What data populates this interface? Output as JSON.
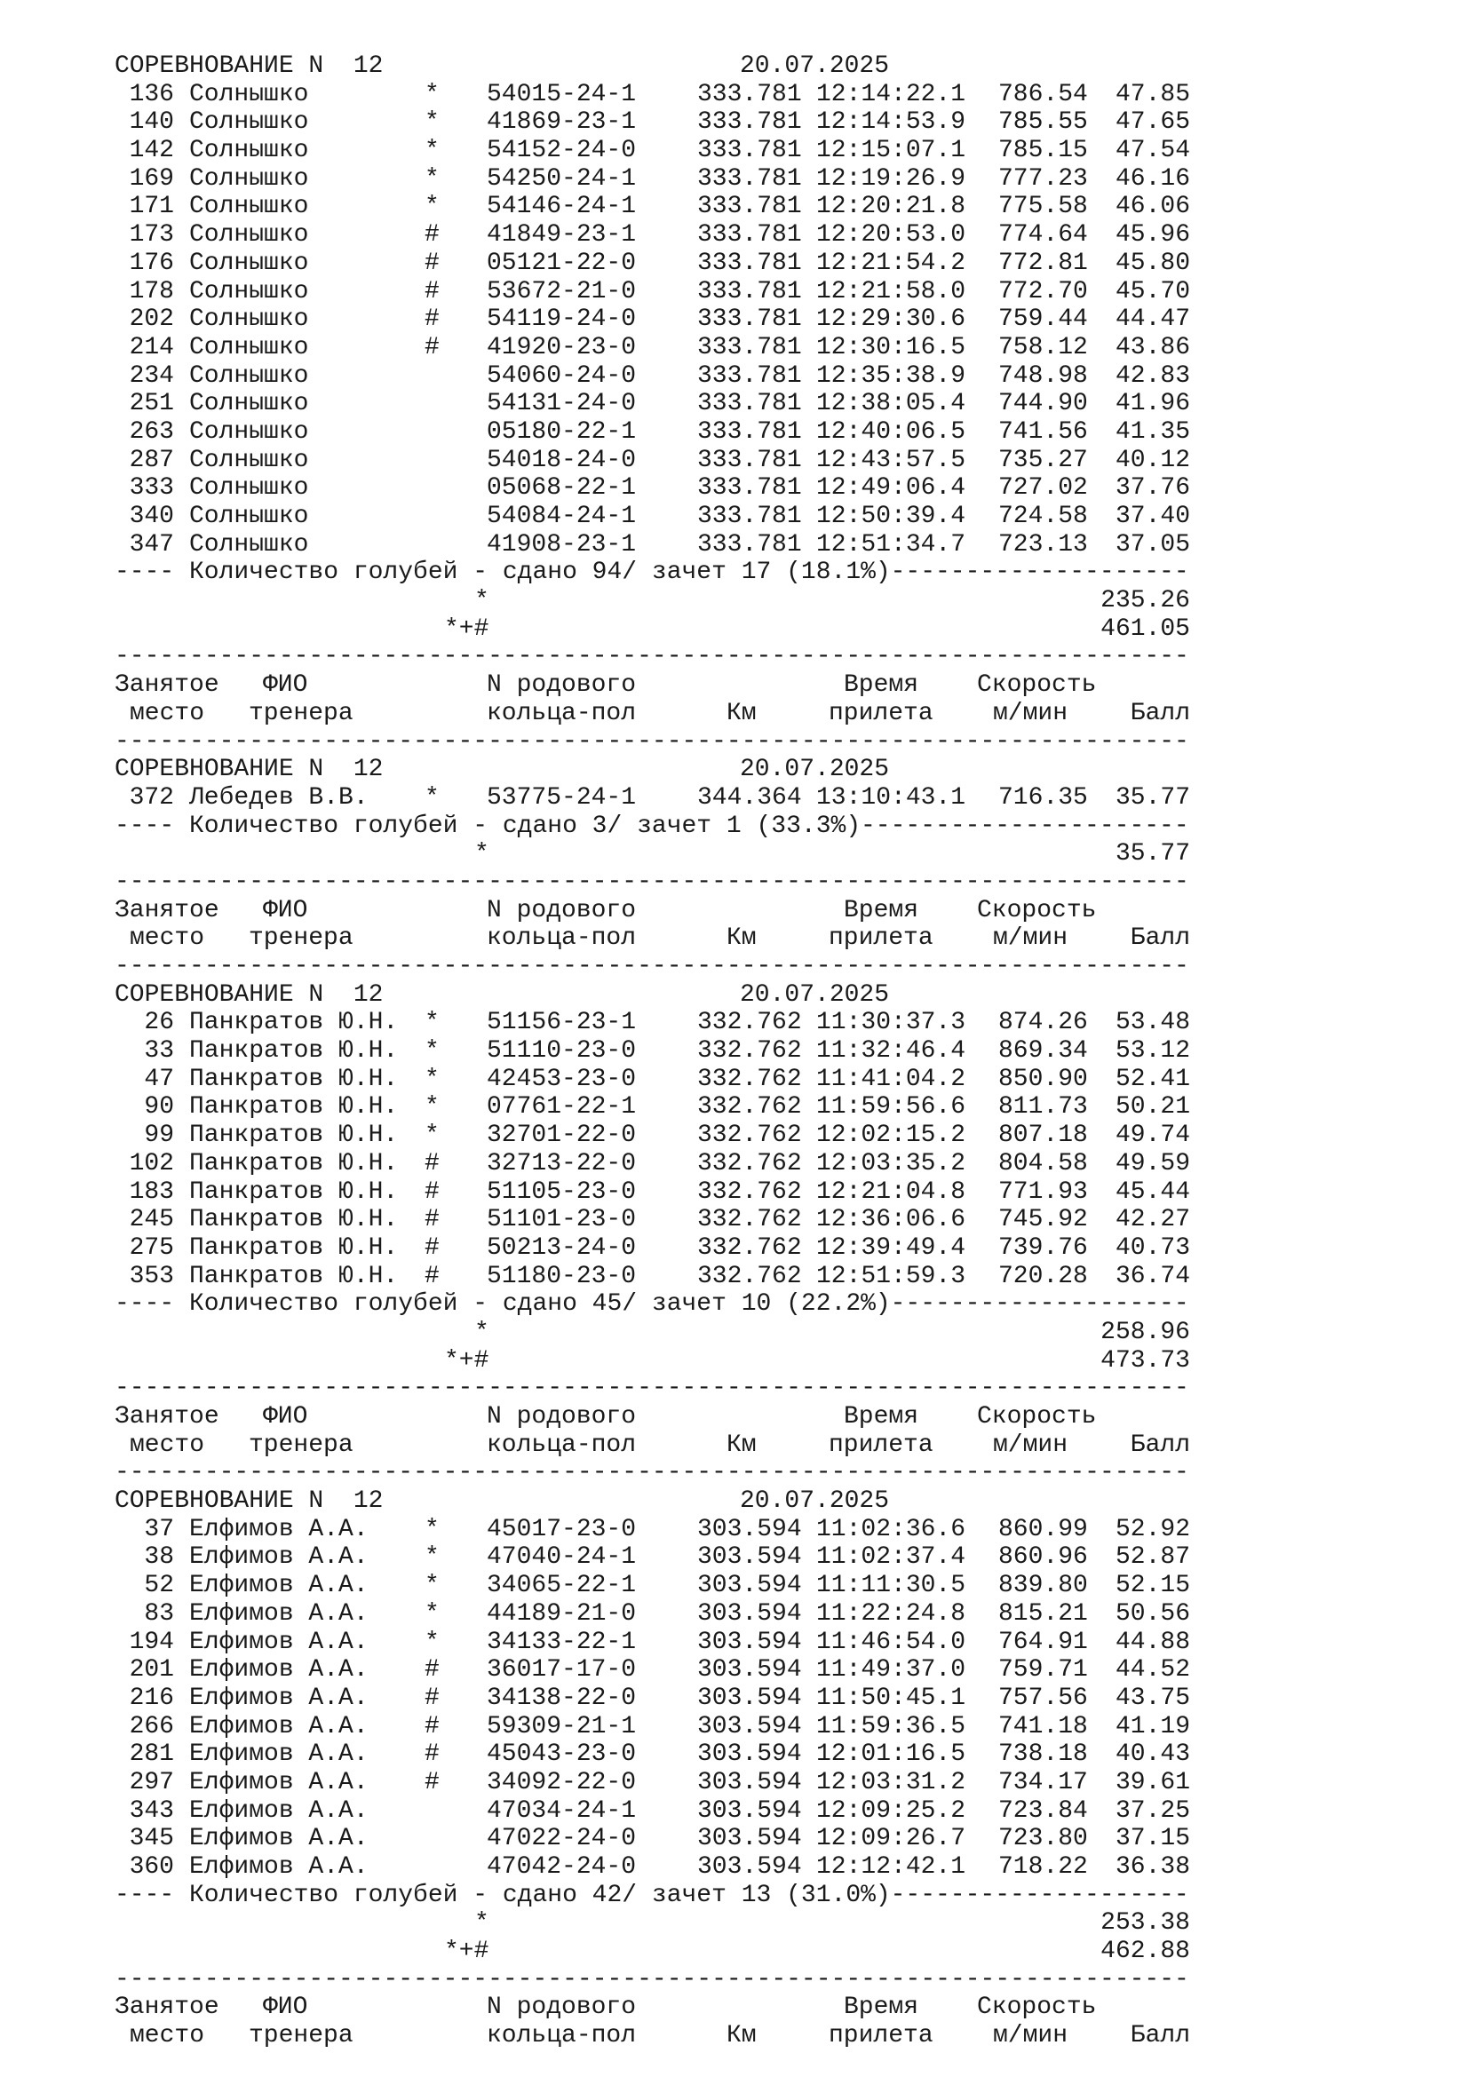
{
  "column_headers": {
    "place_1": "Занятое",
    "place_2": "место",
    "name_1": "ФИО",
    "name_2": "тренера",
    "ring_1": "N родового",
    "ring_2": "кольца-пол",
    "km_2": "Км",
    "time_1": "Время",
    "time_2": "прилета",
    "speed_1": "Скорость",
    "speed_2": "м/мин",
    "points_2": "Балл"
  },
  "sections": [
    {
      "title": "СОРЕВНОВАНИЕ N  12",
      "date": "20.07.2025",
      "rows": [
        {
          "place": "136",
          "name": "Солнышко",
          "mark": "*",
          "ring": "54015-24-1",
          "km": "333.781",
          "time": "12:14:22.1",
          "speed": "786.54",
          "points": "47.85"
        },
        {
          "place": "140",
          "name": "Солнышко",
          "mark": "*",
          "ring": "41869-23-1",
          "km": "333.781",
          "time": "12:14:53.9",
          "speed": "785.55",
          "points": "47.65"
        },
        {
          "place": "142",
          "name": "Солнышко",
          "mark": "*",
          "ring": "54152-24-0",
          "km": "333.781",
          "time": "12:15:07.1",
          "speed": "785.15",
          "points": "47.54"
        },
        {
          "place": "169",
          "name": "Солнышко",
          "mark": "*",
          "ring": "54250-24-1",
          "km": "333.781",
          "time": "12:19:26.9",
          "speed": "777.23",
          "points": "46.16"
        },
        {
          "place": "171",
          "name": "Солнышко",
          "mark": "*",
          "ring": "54146-24-1",
          "km": "333.781",
          "time": "12:20:21.8",
          "speed": "775.58",
          "points": "46.06"
        },
        {
          "place": "173",
          "name": "Солнышко",
          "mark": "#",
          "ring": "41849-23-1",
          "km": "333.781",
          "time": "12:20:53.0",
          "speed": "774.64",
          "points": "45.96"
        },
        {
          "place": "176",
          "name": "Солнышко",
          "mark": "#",
          "ring": "05121-22-0",
          "km": "333.781",
          "time": "12:21:54.2",
          "speed": "772.81",
          "points": "45.80"
        },
        {
          "place": "178",
          "name": "Солнышко",
          "mark": "#",
          "ring": "53672-21-0",
          "km": "333.781",
          "time": "12:21:58.0",
          "speed": "772.70",
          "points": "45.70"
        },
        {
          "place": "202",
          "name": "Солнышко",
          "mark": "#",
          "ring": "54119-24-0",
          "km": "333.781",
          "time": "12:29:30.6",
          "speed": "759.44",
          "points": "44.47"
        },
        {
          "place": "214",
          "name": "Солнышко",
          "mark": "#",
          "ring": "41920-23-0",
          "km": "333.781",
          "time": "12:30:16.5",
          "speed": "758.12",
          "points": "43.86"
        },
        {
          "place": "234",
          "name": "Солнышко",
          "mark": "",
          "ring": "54060-24-0",
          "km": "333.781",
          "time": "12:35:38.9",
          "speed": "748.98",
          "points": "42.83"
        },
        {
          "place": "251",
          "name": "Солнышко",
          "mark": "",
          "ring": "54131-24-0",
          "km": "333.781",
          "time": "12:38:05.4",
          "speed": "744.90",
          "points": "41.96"
        },
        {
          "place": "263",
          "name": "Солнышко",
          "mark": "",
          "ring": "05180-22-1",
          "km": "333.781",
          "time": "12:40:06.5",
          "speed": "741.56",
          "points": "41.35"
        },
        {
          "place": "287",
          "name": "Солнышко",
          "mark": "",
          "ring": "54018-24-0",
          "km": "333.781",
          "time": "12:43:57.5",
          "speed": "735.27",
          "points": "40.12"
        },
        {
          "place": "333",
          "name": "Солнышко",
          "mark": "",
          "ring": "05068-22-1",
          "km": "333.781",
          "time": "12:49:06.4",
          "speed": "727.02",
          "points": "37.76"
        },
        {
          "place": "340",
          "name": "Солнышко",
          "mark": "",
          "ring": "54084-24-1",
          "km": "333.781",
          "time": "12:50:39.4",
          "speed": "724.58",
          "points": "37.40"
        },
        {
          "place": "347",
          "name": "Солнышко",
          "mark": "",
          "ring": "41908-23-1",
          "km": "333.781",
          "time": "12:51:34.7",
          "speed": "723.13",
          "points": "37.05"
        }
      ],
      "count_text": "Количество голубей - сдано 94/ зачет 17 (18.1%)",
      "sums": [
        {
          "label": "*",
          "value": "235.26"
        },
        {
          "label": "*+#",
          "value": "461.05"
        }
      ]
    },
    {
      "title": "СОРЕВНОВАНИЕ N  12",
      "date": "20.07.2025",
      "rows": [
        {
          "place": "372",
          "name": "Лебедев В.В.",
          "mark": "*",
          "ring": "53775-24-1",
          "km": "344.364",
          "time": "13:10:43.1",
          "speed": "716.35",
          "points": "35.77"
        }
      ],
      "count_text": "Количество голубей - сдано 3/ зачет 1 (33.3%)",
      "sums": [
        {
          "label": "*",
          "value": "35.77"
        }
      ]
    },
    {
      "title": "СОРЕВНОВАНИЕ N  12",
      "date": "20.07.2025",
      "rows": [
        {
          "place": "26",
          "name": "Панкратов Ю.Н.",
          "mark": "*",
          "ring": "51156-23-1",
          "km": "332.762",
          "time": "11:30:37.3",
          "speed": "874.26",
          "points": "53.48"
        },
        {
          "place": "33",
          "name": "Панкратов Ю.Н.",
          "mark": "*",
          "ring": "51110-23-0",
          "km": "332.762",
          "time": "11:32:46.4",
          "speed": "869.34",
          "points": "53.12"
        },
        {
          "place": "47",
          "name": "Панкратов Ю.Н.",
          "mark": "*",
          "ring": "42453-23-0",
          "km": "332.762",
          "time": "11:41:04.2",
          "speed": "850.90",
          "points": "52.41"
        },
        {
          "place": "90",
          "name": "Панкратов Ю.Н.",
          "mark": "*",
          "ring": "07761-22-1",
          "km": "332.762",
          "time": "11:59:56.6",
          "speed": "811.73",
          "points": "50.21"
        },
        {
          "place": "99",
          "name": "Панкратов Ю.Н.",
          "mark": "*",
          "ring": "32701-22-0",
          "km": "332.762",
          "time": "12:02:15.2",
          "speed": "807.18",
          "points": "49.74"
        },
        {
          "place": "102",
          "name": "Панкратов Ю.Н.",
          "mark": "#",
          "ring": "32713-22-0",
          "km": "332.762",
          "time": "12:03:35.2",
          "speed": "804.58",
          "points": "49.59"
        },
        {
          "place": "183",
          "name": "Панкратов Ю.Н.",
          "mark": "#",
          "ring": "51105-23-0",
          "km": "332.762",
          "time": "12:21:04.8",
          "speed": "771.93",
          "points": "45.44"
        },
        {
          "place": "245",
          "name": "Панкратов Ю.Н.",
          "mark": "#",
          "ring": "51101-23-0",
          "km": "332.762",
          "time": "12:36:06.6",
          "speed": "745.92",
          "points": "42.27"
        },
        {
          "place": "275",
          "name": "Панкратов Ю.Н.",
          "mark": "#",
          "ring": "50213-24-0",
          "km": "332.762",
          "time": "12:39:49.4",
          "speed": "739.76",
          "points": "40.73"
        },
        {
          "place": "353",
          "name": "Панкратов Ю.Н.",
          "mark": "#",
          "ring": "51180-23-0",
          "km": "332.762",
          "time": "12:51:59.3",
          "speed": "720.28",
          "points": "36.74"
        }
      ],
      "count_text": "Количество голубей - сдано 45/ зачет 10 (22.2%)",
      "sums": [
        {
          "label": "*",
          "value": "258.96"
        },
        {
          "label": "*+#",
          "value": "473.73"
        }
      ]
    },
    {
      "title": "СОРЕВНОВАНИЕ N  12",
      "date": "20.07.2025",
      "rows": [
        {
          "place": "37",
          "name": "Елфимов А.А.",
          "mark": "*",
          "ring": "45017-23-0",
          "km": "303.594",
          "time": "11:02:36.6",
          "speed": "860.99",
          "points": "52.92"
        },
        {
          "place": "38",
          "name": "Елфимов А.А.",
          "mark": "*",
          "ring": "47040-24-1",
          "km": "303.594",
          "time": "11:02:37.4",
          "speed": "860.96",
          "points": "52.87"
        },
        {
          "place": "52",
          "name": "Елфимов А.А.",
          "mark": "*",
          "ring": "34065-22-1",
          "km": "303.594",
          "time": "11:11:30.5",
          "speed": "839.80",
          "points": "52.15"
        },
        {
          "place": "83",
          "name": "Елфимов А.А.",
          "mark": "*",
          "ring": "44189-21-0",
          "km": "303.594",
          "time": "11:22:24.8",
          "speed": "815.21",
          "points": "50.56"
        },
        {
          "place": "194",
          "name": "Елфимов А.А.",
          "mark": "*",
          "ring": "34133-22-1",
          "km": "303.594",
          "time": "11:46:54.0",
          "speed": "764.91",
          "points": "44.88"
        },
        {
          "place": "201",
          "name": "Елфимов А.А.",
          "mark": "#",
          "ring": "36017-17-0",
          "km": "303.594",
          "time": "11:49:37.0",
          "speed": "759.71",
          "points": "44.52"
        },
        {
          "place": "216",
          "name": "Елфимов А.А.",
          "mark": "#",
          "ring": "34138-22-0",
          "km": "303.594",
          "time": "11:50:45.1",
          "speed": "757.56",
          "points": "43.75"
        },
        {
          "place": "266",
          "name": "Елфимов А.А.",
          "mark": "#",
          "ring": "59309-21-1",
          "km": "303.594",
          "time": "11:59:36.5",
          "speed": "741.18",
          "points": "41.19"
        },
        {
          "place": "281",
          "name": "Елфимов А.А.",
          "mark": "#",
          "ring": "45043-23-0",
          "km": "303.594",
          "time": "12:01:16.5",
          "speed": "738.18",
          "points": "40.43"
        },
        {
          "place": "297",
          "name": "Елфимов А.А.",
          "mark": "#",
          "ring": "34092-22-0",
          "km": "303.594",
          "time": "12:03:31.2",
          "speed": "734.17",
          "points": "39.61"
        },
        {
          "place": "343",
          "name": "Елфимов А.А.",
          "mark": "",
          "ring": "47034-24-1",
          "km": "303.594",
          "time": "12:09:25.2",
          "speed": "723.84",
          "points": "37.25"
        },
        {
          "place": "345",
          "name": "Елфимов А.А.",
          "mark": "",
          "ring": "47022-24-0",
          "km": "303.594",
          "time": "12:09:26.7",
          "speed": "723.80",
          "points": "37.15"
        },
        {
          "place": "360",
          "name": "Елфимов А.А.",
          "mark": "",
          "ring": "47042-24-0",
          "km": "303.594",
          "time": "12:12:42.1",
          "speed": "718.22",
          "points": "36.38"
        }
      ],
      "count_text": "Количество голубей - сдано 42/ зачет 13 (31.0%)",
      "sums": [
        {
          "label": "*",
          "value": "253.38"
        },
        {
          "label": "*+#",
          "value": "462.88"
        }
      ]
    }
  ]
}
